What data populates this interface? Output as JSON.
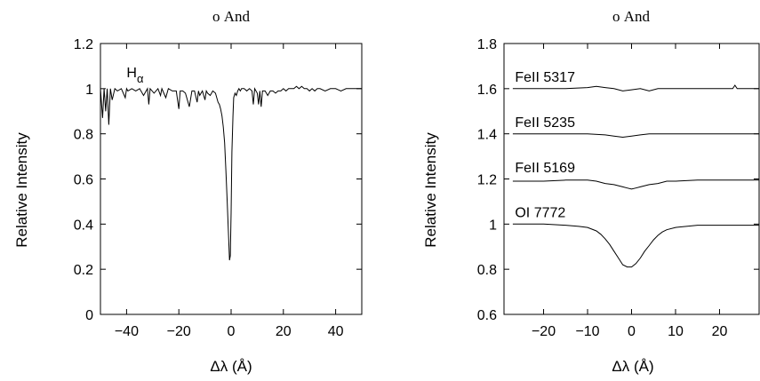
{
  "chart_data": [
    {
      "type": "line",
      "title": "ο And",
      "xlabel": "Δλ (Å)",
      "ylabel": "Relative Intensity",
      "xlim": [
        -50,
        50
      ],
      "ylim": [
        0,
        1.2
      ],
      "xticks": [
        -40,
        -20,
        0,
        20,
        40
      ],
      "yticks": [
        0,
        0.2,
        0.4,
        0.6,
        0.8,
        1,
        1.2
      ],
      "ytick_labels": [
        "0",
        "0.2",
        "0.4",
        "0.6",
        "0.8",
        "1",
        "1.2"
      ],
      "grid": false,
      "annotations": [
        {
          "text": "H",
          "sub": "α",
          "x": -40,
          "y": 1.05
        }
      ],
      "series": [
        {
          "x": [
            -50,
            -49.2,
            -48.6,
            -48,
            -47.4,
            -46.8,
            -46.2,
            -45.5,
            -44.5,
            -43.5,
            -42,
            -40.5,
            -40,
            -39.5,
            -38,
            -36.5,
            -35,
            -33.5,
            -32,
            -31.5,
            -31,
            -29.5,
            -28,
            -27,
            -26.5,
            -25,
            -24,
            -22.5,
            -21,
            -20,
            -19.5,
            -18.5,
            -17.5,
            -16,
            -15,
            -14,
            -13,
            -12.5,
            -12,
            -11,
            -10,
            -9.5,
            -9,
            -8,
            -7,
            -6,
            -5,
            -4.5,
            -4,
            -3.5,
            -3,
            -2.5,
            -2,
            -1.5,
            -1,
            -0.6,
            -0.3,
            0,
            0.3,
            0.7,
            1,
            1.5,
            2,
            2.5,
            3,
            3.5,
            4,
            5,
            6,
            7,
            8,
            8.5,
            9,
            10,
            10.5,
            11,
            11.5,
            12,
            13,
            14,
            15,
            16,
            17,
            18,
            19,
            20,
            21,
            22,
            23,
            24,
            25,
            26,
            27,
            28,
            29,
            30,
            31,
            32,
            33,
            34,
            36,
            38,
            40,
            42,
            44,
            46,
            48,
            50
          ],
          "y": [
            1.0,
            0.87,
            1.0,
            0.9,
            1.0,
            0.84,
            1.0,
            0.95,
            1.0,
            0.99,
            1.0,
            0.96,
            1.0,
            0.99,
            1.0,
            0.99,
            1.0,
            0.97,
            1.0,
            0.93,
            1.0,
            0.98,
            1.0,
            0.97,
            1.0,
            0.96,
            1.0,
            0.99,
            0.99,
            0.91,
            0.99,
            0.99,
            0.98,
            0.92,
            0.99,
            0.99,
            0.94,
            0.99,
            0.97,
            0.99,
            0.95,
            0.99,
            0.98,
            0.97,
            0.99,
            0.98,
            0.94,
            0.93,
            0.91,
            0.88,
            0.83,
            0.76,
            0.64,
            0.5,
            0.35,
            0.24,
            0.26,
            0.45,
            0.72,
            0.88,
            0.96,
            0.98,
            0.97,
            0.99,
            1.0,
            0.99,
            1.0,
            1.0,
            0.99,
            1.0,
            0.99,
            0.93,
            1.0,
            0.98,
            0.93,
            0.99,
            0.92,
            0.99,
            0.99,
            0.97,
            0.99,
            0.99,
            0.98,
            0.99,
            0.99,
            1.0,
            0.99,
            1.0,
            1.0,
            1.0,
            1.01,
            1.0,
            1.01,
            1.0,
            1.0,
            0.99,
            1.0,
            0.99,
            1.0,
            1.0,
            0.99,
            1.0,
            1.0,
            0.99,
            1.0,
            1.0,
            1.0,
            1.0
          ]
        }
      ]
    },
    {
      "type": "line",
      "title": "ο And",
      "xlabel": "Δλ (Å)",
      "ylabel": "Relative Intensity",
      "xlim": [
        -29,
        29
      ],
      "ylim": [
        0.6,
        1.8
      ],
      "xticks": [
        -20,
        -10,
        0,
        10,
        20
      ],
      "yticks": [
        0.6,
        0.8,
        1,
        1.2,
        1.4,
        1.6,
        1.8
      ],
      "ytick_labels": [
        "0.6",
        "0.8",
        "1",
        "1.2",
        "1.4",
        "1.6",
        "1.8"
      ],
      "grid": false,
      "annotations": [
        {
          "text": "FeII 5317",
          "x": -26.5,
          "y": 1.63
        },
        {
          "text": "FeII 5235",
          "x": -26.5,
          "y": 1.43
        },
        {
          "text": "FeII 5169",
          "x": -26.5,
          "y": 1.23
        },
        {
          "text": "OI 7772",
          "x": -26.5,
          "y": 1.03
        }
      ],
      "series": [
        {
          "label": "FeII 5317",
          "x": [
            -27,
            -20,
            -15,
            -10,
            -8,
            -6,
            -4,
            -2,
            0,
            2,
            4,
            6,
            8,
            10,
            15,
            20,
            23,
            23.5,
            24,
            25,
            29
          ],
          "y": [
            1.6,
            1.6,
            1.6,
            1.605,
            1.61,
            1.605,
            1.6,
            1.59,
            1.595,
            1.6,
            1.59,
            1.6,
            1.6,
            1.6,
            1.6,
            1.6,
            1.6,
            1.615,
            1.6,
            1.6,
            1.6
          ]
        },
        {
          "label": "FeII 5235",
          "x": [
            -27,
            -20,
            -15,
            -10,
            -6,
            -4,
            -2,
            0,
            2,
            4,
            6,
            10,
            15,
            20,
            25,
            29
          ],
          "y": [
            1.4,
            1.4,
            1.4,
            1.4,
            1.395,
            1.39,
            1.385,
            1.39,
            1.395,
            1.4,
            1.4,
            1.4,
            1.4,
            1.4,
            1.4,
            1.4
          ]
        },
        {
          "label": "FeII 5169",
          "x": [
            -27,
            -20,
            -15,
            -10,
            -8,
            -6,
            -4,
            -2,
            -1,
            0,
            1,
            2,
            4,
            6,
            8,
            10,
            15,
            20,
            25,
            29
          ],
          "y": [
            1.19,
            1.19,
            1.195,
            1.195,
            1.19,
            1.18,
            1.175,
            1.165,
            1.16,
            1.155,
            1.16,
            1.165,
            1.175,
            1.18,
            1.19,
            1.19,
            1.195,
            1.195,
            1.195,
            1.195
          ]
        },
        {
          "label": "OI 7772",
          "x": [
            -27,
            -20,
            -15,
            -12,
            -10,
            -8,
            -7,
            -6,
            -5,
            -4,
            -3,
            -2,
            -1,
            0,
            1,
            2,
            3,
            4,
            5,
            6,
            7,
            8,
            10,
            15,
            20,
            25,
            29
          ],
          "y": [
            1.0,
            1.0,
            0.995,
            0.99,
            0.985,
            0.97,
            0.955,
            0.935,
            0.91,
            0.88,
            0.85,
            0.82,
            0.81,
            0.81,
            0.825,
            0.85,
            0.88,
            0.905,
            0.93,
            0.95,
            0.965,
            0.975,
            0.985,
            0.995,
            0.995,
            0.995,
            0.995
          ]
        }
      ]
    }
  ]
}
